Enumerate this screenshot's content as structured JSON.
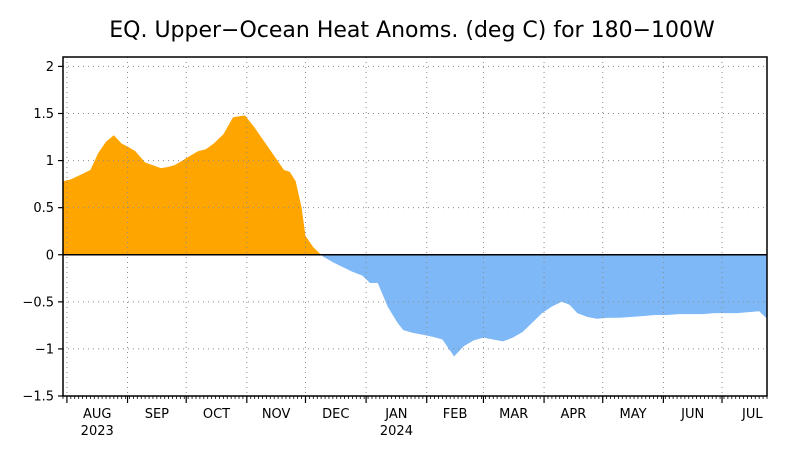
{
  "chart_data": {
    "type": "area",
    "title": "EQ. Upper−Ocean Heat Anoms. (deg C) for 180−100W",
    "xlabel": "",
    "ylabel": "",
    "ylim": [
      -1.5,
      2.1
    ],
    "yticks": [
      -1.5,
      -1,
      -0.5,
      0,
      0.5,
      1,
      1.5,
      2
    ],
    "ytick_labels": [
      "−1.5",
      "−1",
      "−0.5",
      "0",
      "0.5",
      "1",
      "1.5",
      "2"
    ],
    "xlim": [
      "2023-07-30",
      "2024-07-24"
    ],
    "month_ticks": [
      {
        "date": "2023-08-01",
        "label": "AUG",
        "year": "2023"
      },
      {
        "date": "2023-09-01",
        "label": "SEP",
        "year": ""
      },
      {
        "date": "2023-10-01",
        "label": "OCT",
        "year": ""
      },
      {
        "date": "2023-11-01",
        "label": "NOV",
        "year": ""
      },
      {
        "date": "2023-12-01",
        "label": "DEC",
        "year": ""
      },
      {
        "date": "2024-01-01",
        "label": "JAN",
        "year": "2024"
      },
      {
        "date": "2024-02-01",
        "label": "FEB",
        "year": ""
      },
      {
        "date": "2024-03-01",
        "label": "MAR",
        "year": ""
      },
      {
        "date": "2024-04-01",
        "label": "APR",
        "year": ""
      },
      {
        "date": "2024-05-01",
        "label": "MAY",
        "year": ""
      },
      {
        "date": "2024-06-01",
        "label": "JUN",
        "year": ""
      },
      {
        "date": "2024-07-01",
        "label": "JUL",
        "year": ""
      }
    ],
    "grid": true,
    "positive_color": "#ffa500",
    "negative_color": "#7eb8f7",
    "x": [
      "2023-07-30",
      "2023-08-03",
      "2023-08-08",
      "2023-08-13",
      "2023-08-17",
      "2023-08-21",
      "2023-08-25",
      "2023-08-29",
      "2023-09-01",
      "2023-09-05",
      "2023-09-10",
      "2023-09-14",
      "2023-09-18",
      "2023-09-21",
      "2023-09-25",
      "2023-09-29",
      "2023-10-03",
      "2023-10-07",
      "2023-10-11",
      "2023-10-15",
      "2023-10-20",
      "2023-10-25",
      "2023-10-31",
      "2023-11-05",
      "2023-11-10",
      "2023-11-15",
      "2023-11-20",
      "2023-11-23",
      "2023-11-26",
      "2023-11-29",
      "2023-12-01",
      "2023-12-05",
      "2023-12-10",
      "2023-12-15",
      "2023-12-20",
      "2023-12-25",
      "2023-12-30",
      "2024-01-03",
      "2024-01-07",
      "2024-01-12",
      "2024-01-17",
      "2024-01-20",
      "2024-01-25",
      "2024-01-30",
      "2024-02-04",
      "2024-02-09",
      "2024-02-15",
      "2024-02-20",
      "2024-02-25",
      "2024-03-01",
      "2024-03-06",
      "2024-03-11",
      "2024-03-16",
      "2024-03-21",
      "2024-03-26",
      "2024-03-31",
      "2024-04-05",
      "2024-04-10",
      "2024-04-14",
      "2024-04-18",
      "2024-04-23",
      "2024-04-28",
      "2024-05-04",
      "2024-05-10",
      "2024-05-16",
      "2024-05-22",
      "2024-05-28",
      "2024-06-03",
      "2024-06-09",
      "2024-06-15",
      "2024-06-21",
      "2024-06-27",
      "2024-07-03",
      "2024-07-09",
      "2024-07-14",
      "2024-07-20",
      "2024-07-24"
    ],
    "values": [
      0.78,
      0.8,
      0.85,
      0.9,
      1.08,
      1.2,
      1.27,
      1.18,
      1.15,
      1.1,
      0.98,
      0.95,
      0.92,
      0.93,
      0.95,
      1.0,
      1.05,
      1.1,
      1.12,
      1.18,
      1.28,
      1.46,
      1.48,
      1.35,
      1.2,
      1.05,
      0.9,
      0.88,
      0.78,
      0.5,
      0.2,
      0.08,
      -0.02,
      -0.08,
      -0.13,
      -0.18,
      -0.22,
      -0.3,
      -0.3,
      -0.55,
      -0.72,
      -0.8,
      -0.83,
      -0.85,
      -0.87,
      -0.9,
      -1.08,
      -0.97,
      -0.91,
      -0.88,
      -0.9,
      -0.92,
      -0.88,
      -0.82,
      -0.72,
      -0.62,
      -0.55,
      -0.5,
      -0.53,
      -0.62,
      -0.66,
      -0.68,
      -0.67,
      -0.67,
      -0.66,
      -0.65,
      -0.64,
      -0.64,
      -0.63,
      -0.63,
      -0.63,
      -0.62,
      -0.62,
      -0.62,
      -0.61,
      -0.6,
      -0.68
    ]
  }
}
